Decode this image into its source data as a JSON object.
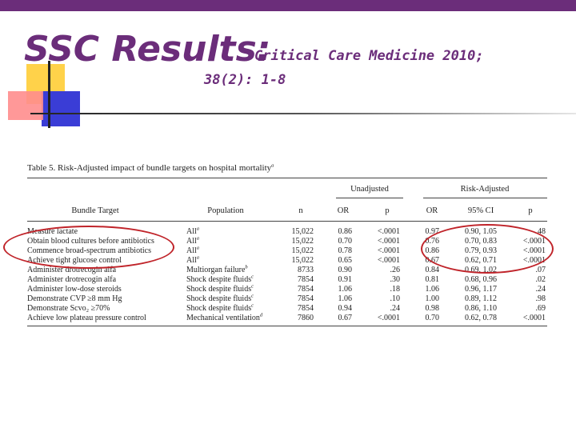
{
  "slide": {
    "title": "SSC Results:",
    "subtitle_line1": "Critical Care Medicine 2010;",
    "subtitle_line2": "38(2): 1-8"
  },
  "table": {
    "caption": "Table 5.  Risk-Adjusted impact of bundle targets on hospital mortality",
    "caption_sup": "a",
    "group_unadjusted": "Unadjusted",
    "group_adjusted": "Risk-Adjusted",
    "headers": [
      "Bundle Target",
      "Population",
      "n",
      "OR",
      "p",
      "OR",
      "95% CI",
      "p"
    ],
    "rows": [
      {
        "target": "Measure lactate",
        "population": "All",
        "sup": "a",
        "n": "15,022",
        "or1": "0.86",
        "p1": "<.0001",
        "or2": "0.97",
        "ci": "0.90, 1.05",
        "p2": ".48"
      },
      {
        "target": "Obtain blood cultures before antibiotics",
        "population": "All",
        "sup": "a",
        "n": "15,022",
        "or1": "0.70",
        "p1": "<.0001",
        "or2": "0.76",
        "ci": "0.70, 0.83",
        "p2": "<.0001"
      },
      {
        "target": "Commence broad-spectrum antibiotics",
        "population": "All",
        "sup": "a",
        "n": "15,022",
        "or1": "0.78",
        "p1": "<.0001",
        "or2": "0.86",
        "ci": "0.79, 0.93",
        "p2": "<.0001"
      },
      {
        "target": "Achieve tight glucose control",
        "population": "All",
        "sup": "a",
        "n": "15,022",
        "or1": "0.65",
        "p1": "<.0001",
        "or2": "0.67",
        "ci": "0.62, 0.71",
        "p2": "<.0001"
      },
      {
        "target": "Administer drotrecogin alfa",
        "population": "Multiorgan failure",
        "sup": "b",
        "n": "8733",
        "or1": "0.90",
        "p1": ".26",
        "or2": "0.84",
        "ci": "0.69, 1.02",
        "p2": ".07"
      },
      {
        "target": "Administer drotrecogin alfa",
        "population": "Shock despite fluids",
        "sup": "c",
        "n": "7854",
        "or1": "0.91",
        "p1": ".30",
        "or2": "0.81",
        "ci": "0.68, 0.96",
        "p2": ".02"
      },
      {
        "target": "Administer low-dose steroids",
        "population": "Shock despite fluids",
        "sup": "c",
        "n": "7854",
        "or1": "1.06",
        "p1": ".18",
        "or2": "1.06",
        "ci": "0.96, 1.17",
        "p2": ".24"
      },
      {
        "target": "Demonstrate CVP ≥8 mm Hg",
        "population": "Shock despite fluids",
        "sup": "c",
        "n": "7854",
        "or1": "1.06",
        "p1": ".10",
        "or2": "1.00",
        "ci": "0.89, 1.12",
        "p2": ".98"
      },
      {
        "target": "Demonstrate Scvo₂ ≥70%",
        "population": "Shock despite fluids",
        "sup": "c",
        "n": "7854",
        "or1": "0.94",
        "p1": ".24",
        "or2": "0.98",
        "ci": "0.86, 1.10",
        "p2": ".69"
      },
      {
        "target": "Achieve low plateau pressure control",
        "population": "Mechanical ventilation",
        "sup": "d",
        "n": "7860",
        "or1": "0.67",
        "p1": "<.0001",
        "or2": "0.70",
        "ci": "0.62, 0.78",
        "p2": "<.0001"
      }
    ]
  },
  "colors": {
    "title": "#6b2d7a",
    "highlight_circle": "#c0242a",
    "top_bar": "#6b2d7a"
  }
}
